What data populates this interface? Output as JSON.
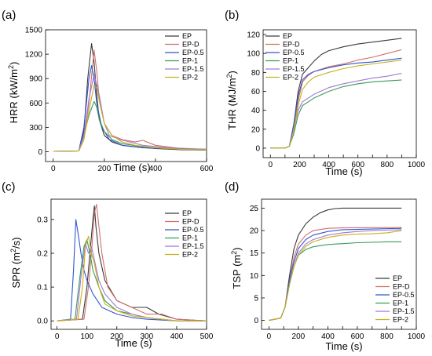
{
  "figure": {
    "panels": [
      {
        "label": "(a)",
        "xlabel": "Time (s)",
        "ylabel_main": "HRR (kW/m",
        "ylabel_sup": "2",
        "ylabel_tail": ")"
      },
      {
        "label": "(b)",
        "xlabel": "Time (s)",
        "ylabel_main": "THR (MJ/m",
        "ylabel_sup": "2",
        "ylabel_tail": ")"
      },
      {
        "label": "(c)",
        "xlabel": "Time (s)",
        "ylabel_main": "SPR (m",
        "ylabel_sup": "2",
        "ylabel_tail": "/s)"
      },
      {
        "label": "(d)",
        "xlabel": "Time (s)",
        "ylabel_main": "TSP (m",
        "ylabel_sup": "2",
        "ylabel_tail": ")"
      }
    ]
  },
  "colors": {
    "EP": "#3a3a3a",
    "EP-D": "#d0706a",
    "EP-0.5": "#3355cc",
    "EP-1": "#3a9a5a",
    "EP-1.5": "#a07ad0",
    "EP-2": "#c8b020"
  },
  "chart_data": [
    {
      "type": "line",
      "panel": "(a)",
      "xlabel": "Time (s)",
      "ylabel": "HRR (kW/m2)",
      "xlim": [
        -30,
        600
      ],
      "ylim": [
        -120,
        1500
      ],
      "xticks": [
        0,
        200,
        400,
        600
      ],
      "yticks": [
        0,
        300,
        600,
        900,
        1200,
        1500
      ],
      "legend": "top-right",
      "series": [
        {
          "name": "EP",
          "x": [
            0,
            100,
            120,
            135,
            150,
            160,
            170,
            180,
            200,
            230,
            270,
            320,
            400,
            500,
            600
          ],
          "y": [
            5,
            10,
            250,
            900,
            1330,
            1100,
            700,
            400,
            200,
            120,
            80,
            60,
            40,
            25,
            20
          ]
        },
        {
          "name": "EP-D",
          "x": [
            0,
            100,
            120,
            140,
            160,
            170,
            180,
            200,
            230,
            270,
            320,
            350,
            400,
            500,
            600
          ],
          "y": [
            5,
            10,
            150,
            600,
            1250,
            1000,
            650,
            350,
            200,
            150,
            120,
            140,
            80,
            40,
            30
          ]
        },
        {
          "name": "EP-0.5",
          "x": [
            0,
            100,
            120,
            140,
            150,
            160,
            170,
            190,
            220,
            270,
            350,
            450,
            600
          ],
          "y": [
            5,
            10,
            300,
            900,
            1060,
            900,
            600,
            300,
            150,
            80,
            50,
            40,
            30
          ]
        },
        {
          "name": "EP-1",
          "x": [
            0,
            100,
            120,
            140,
            160,
            170,
            180,
            200,
            230,
            270,
            350,
            450,
            600
          ],
          "y": [
            5,
            10,
            200,
            450,
            620,
            550,
            400,
            250,
            150,
            100,
            60,
            40,
            20
          ]
        },
        {
          "name": "EP-1.5",
          "x": [
            0,
            100,
            120,
            140,
            160,
            180,
            200,
            220,
            260,
            300,
            350,
            450,
            600
          ],
          "y": [
            5,
            10,
            200,
            650,
            950,
            700,
            350,
            200,
            150,
            120,
            80,
            50,
            30
          ]
        },
        {
          "name": "EP-2",
          "x": [
            0,
            100,
            120,
            140,
            160,
            170,
            185,
            200,
            230,
            270,
            320,
            400,
            500,
            600
          ],
          "y": [
            5,
            10,
            150,
            500,
            820,
            780,
            550,
            350,
            200,
            120,
            80,
            50,
            30,
            25
          ]
        }
      ]
    },
    {
      "type": "line",
      "panel": "(b)",
      "xlabel": "Time (s)",
      "ylabel": "THR (MJ/m2)",
      "xlim": [
        -50,
        1000
      ],
      "ylim": [
        -10,
        125
      ],
      "xticks": [
        0,
        100,
        200,
        300,
        400,
        500,
        600,
        700,
        800,
        900,
        1000
      ],
      "yticks": [
        0,
        20,
        40,
        60,
        80,
        100,
        120
      ],
      "legend": "top-left",
      "series": [
        {
          "name": "EP",
          "x": [
            0,
            100,
            130,
            160,
            190,
            220,
            260,
            300,
            350,
            400,
            500,
            600,
            700,
            800,
            900
          ],
          "y": [
            0,
            0,
            2,
            25,
            60,
            78,
            85,
            92,
            99,
            103,
            107,
            110,
            112,
            114,
            116
          ]
        },
        {
          "name": "EP-D",
          "x": [
            0,
            100,
            130,
            160,
            190,
            220,
            260,
            300,
            400,
            500,
            600,
            700,
            800,
            900
          ],
          "y": [
            0,
            0,
            2,
            20,
            50,
            70,
            77,
            81,
            86,
            89,
            93,
            96,
            100,
            104
          ]
        },
        {
          "name": "EP-0.5",
          "x": [
            0,
            100,
            130,
            160,
            190,
            220,
            260,
            300,
            400,
            500,
            600,
            700,
            800,
            900
          ],
          "y": [
            0,
            0,
            2,
            25,
            55,
            72,
            78,
            81,
            85,
            88,
            90,
            91,
            93,
            95
          ]
        },
        {
          "name": "EP-1",
          "x": [
            0,
            100,
            130,
            160,
            190,
            220,
            260,
            300,
            400,
            500,
            600,
            700,
            800,
            900
          ],
          "y": [
            0,
            0,
            2,
            15,
            35,
            45,
            49,
            53,
            60,
            65,
            68,
            70,
            71,
            72
          ]
        },
        {
          "name": "EP-1.5",
          "x": [
            0,
            100,
            130,
            160,
            190,
            220,
            260,
            300,
            400,
            500,
            600,
            700,
            800,
            900
          ],
          "y": [
            0,
            0,
            2,
            20,
            40,
            49,
            53,
            57,
            64,
            68,
            71,
            74,
            76,
            79
          ]
        },
        {
          "name": "EP-2",
          "x": [
            0,
            100,
            130,
            160,
            190,
            220,
            260,
            300,
            400,
            500,
            600,
            700,
            800,
            900
          ],
          "y": [
            0,
            0,
            2,
            18,
            45,
            62,
            70,
            75,
            80,
            84,
            87,
            89,
            91,
            93
          ]
        }
      ]
    },
    {
      "type": "line",
      "panel": "(c)",
      "xlabel": "Time (s)",
      "ylabel": "SPR (m2/s)",
      "xlim": [
        -20,
        500
      ],
      "ylim": [
        -0.025,
        0.36
      ],
      "xticks": [
        0,
        100,
        200,
        300,
        400,
        500
      ],
      "yticks": [
        0.0,
        0.1,
        0.2,
        0.3
      ],
      "legend": "top-right",
      "series": [
        {
          "name": "EP",
          "x": [
            0,
            85,
            100,
            110,
            120,
            125,
            130,
            140,
            160,
            200,
            250,
            300,
            340,
            400,
            500
          ],
          "y": [
            0,
            0.005,
            0.1,
            0.2,
            0.3,
            0.34,
            0.28,
            0.2,
            0.12,
            0.06,
            0.04,
            0.04,
            0.02,
            0.005,
            0
          ]
        },
        {
          "name": "EP-D",
          "x": [
            0,
            90,
            105,
            115,
            125,
            132,
            140,
            150,
            170,
            200,
            250,
            300,
            350,
            400,
            500
          ],
          "y": [
            0,
            0.005,
            0.1,
            0.2,
            0.32,
            0.345,
            0.28,
            0.2,
            0.1,
            0.06,
            0.04,
            0.02,
            0.02,
            0.005,
            0
          ]
        },
        {
          "name": "EP-0.5",
          "x": [
            0,
            45,
            55,
            63,
            70,
            80,
            90,
            100,
            120,
            150,
            200,
            250,
            300,
            400,
            500
          ],
          "y": [
            0,
            0.005,
            0.15,
            0.3,
            0.26,
            0.2,
            0.15,
            0.12,
            0.08,
            0.04,
            0.02,
            0.01,
            0.005,
            0,
            0
          ]
        },
        {
          "name": "EP-1",
          "x": [
            0,
            60,
            75,
            90,
            100,
            110,
            120,
            140,
            160,
            200,
            250,
            300,
            400,
            500
          ],
          "y": [
            0,
            0.005,
            0.12,
            0.22,
            0.24,
            0.2,
            0.15,
            0.1,
            0.06,
            0.03,
            0.02,
            0.01,
            0,
            0
          ]
        },
        {
          "name": "EP-1.5",
          "x": [
            0,
            65,
            80,
            95,
            105,
            115,
            125,
            140,
            160,
            200,
            250,
            300,
            400,
            500
          ],
          "y": [
            0,
            0.005,
            0.13,
            0.23,
            0.2,
            0.22,
            0.18,
            0.12,
            0.08,
            0.04,
            0.02,
            0.01,
            0,
            0
          ]
        },
        {
          "name": "EP-2",
          "x": [
            0,
            70,
            85,
            95,
            105,
            115,
            125,
            140,
            160,
            200,
            250,
            300,
            400,
            500
          ],
          "y": [
            0,
            0.005,
            0.1,
            0.22,
            0.25,
            0.2,
            0.17,
            0.1,
            0.05,
            0.03,
            0.015,
            0.01,
            0,
            0
          ]
        }
      ]
    },
    {
      "type": "line",
      "panel": "(d)",
      "xlabel": "Time (s)",
      "ylabel": "TSP (m2)",
      "xlim": [
        -50,
        1000
      ],
      "ylim": [
        -2,
        27
      ],
      "xticks": [
        0,
        100,
        200,
        300,
        400,
        500,
        600,
        700,
        800,
        900,
        1000
      ],
      "yticks": [
        0,
        5,
        10,
        15,
        20,
        25
      ],
      "legend": "bottom-right",
      "series": [
        {
          "name": "EP",
          "x": [
            0,
            80,
            110,
            140,
            170,
            200,
            250,
            300,
            350,
            400,
            450,
            500,
            700,
            900
          ],
          "y": [
            0,
            0.5,
            3,
            10,
            16,
            19,
            21.5,
            23,
            24,
            24.6,
            24.9,
            25,
            25,
            25
          ]
        },
        {
          "name": "EP-D",
          "x": [
            0,
            80,
            110,
            140,
            170,
            200,
            250,
            300,
            400,
            500,
            900
          ],
          "y": [
            0,
            0.5,
            3,
            9,
            14,
            17,
            19,
            20,
            20.5,
            20.6,
            20.7
          ]
        },
        {
          "name": "EP-0.5",
          "x": [
            0,
            80,
            110,
            140,
            170,
            200,
            250,
            300,
            400,
            500,
            900
          ],
          "y": [
            0,
            0.5,
            3,
            9,
            13,
            16,
            18,
            19,
            19.8,
            20.2,
            20.5
          ]
        },
        {
          "name": "EP-1",
          "x": [
            0,
            80,
            110,
            140,
            170,
            200,
            250,
            300,
            400,
            500,
            600,
            700,
            800,
            900
          ],
          "y": [
            0,
            0.5,
            3,
            8,
            12,
            14.5,
            15.8,
            16.4,
            16.9,
            17.1,
            17.3,
            17.4,
            17.5,
            17.5
          ]
        },
        {
          "name": "EP-1.5",
          "x": [
            0,
            80,
            110,
            140,
            170,
            200,
            250,
            300,
            400,
            500,
            600,
            700,
            800,
            900
          ],
          "y": [
            0,
            0.5,
            3,
            8,
            12,
            15,
            17,
            18,
            19,
            19.5,
            19.8,
            20,
            20.1,
            20.2
          ]
        },
        {
          "name": "EP-2",
          "x": [
            0,
            80,
            110,
            140,
            170,
            200,
            250,
            300,
            400,
            500,
            600,
            700,
            800,
            900
          ],
          "y": [
            0,
            0.5,
            3,
            8,
            12,
            14.5,
            16.5,
            17.5,
            18.5,
            19,
            19.2,
            19.3,
            19.5,
            20
          ]
        }
      ]
    }
  ]
}
